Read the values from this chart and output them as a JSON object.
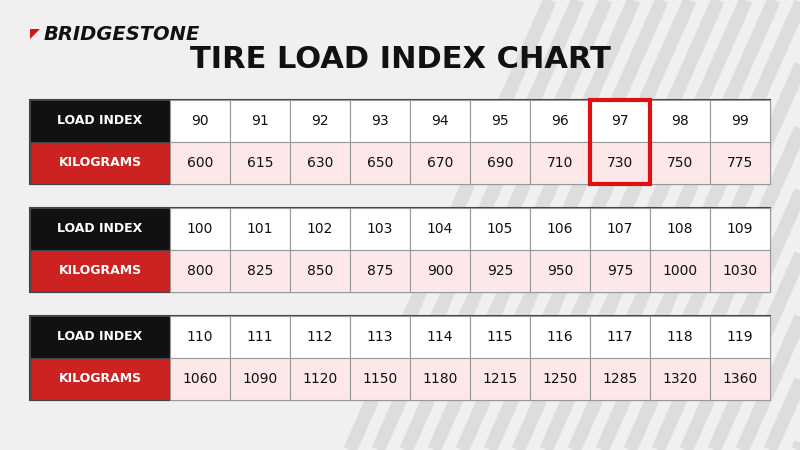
{
  "title": "TIRE LOAD INDEX CHART",
  "bg_top": "#f0f0f0",
  "bg_bottom": "#d8d8d8",
  "tables": [
    {
      "load_index": [
        90,
        91,
        92,
        93,
        94,
        95,
        96,
        97,
        98,
        99
      ],
      "kilograms": [
        600,
        615,
        630,
        650,
        670,
        690,
        710,
        730,
        750,
        775
      ],
      "highlight_col": 7
    },
    {
      "load_index": [
        100,
        101,
        102,
        103,
        104,
        105,
        106,
        107,
        108,
        109
      ],
      "kilograms": [
        800,
        825,
        850,
        875,
        900,
        925,
        950,
        975,
        1000,
        1030
      ],
      "highlight_col": -1
    },
    {
      "load_index": [
        110,
        111,
        112,
        113,
        114,
        115,
        116,
        117,
        118,
        119
      ],
      "kilograms": [
        1060,
        1090,
        1120,
        1150,
        1180,
        1215,
        1250,
        1285,
        1320,
        1360
      ],
      "highlight_col": -1
    }
  ],
  "header_bg": "#111111",
  "header_text_color": "#ffffff",
  "red_header_bg": "#cc2222",
  "cell_bg_white": "#ffffff",
  "cell_bg_pink": "#fce8e8",
  "cell_text_color": "#111111",
  "highlight_border_color": "#dd1111",
  "border_color": "#444444",
  "logo_text": "BRIDGESTONE",
  "stripe_color": "#cccccc",
  "stripe_alpha": 0.5,
  "title_fontsize": 22,
  "header_fontsize": 9,
  "cell_fontsize": 10
}
